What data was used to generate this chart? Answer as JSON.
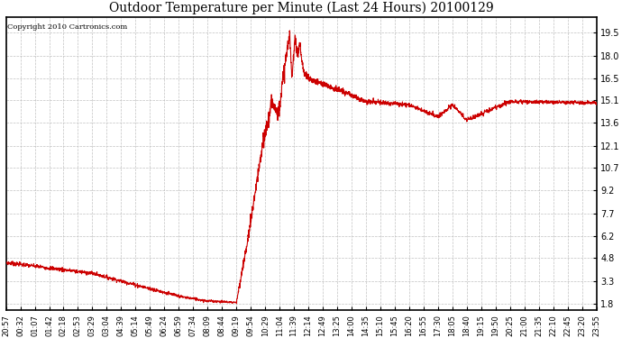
{
  "title": "Outdoor Temperature per Minute (Last 24 Hours) 20100129",
  "copyright": "Copyright 2010 Cartronics.com",
  "line_color": "#cc0000",
  "bg_color": "#ffffff",
  "plot_bg_color": "#ffffff",
  "grid_color": "#bbbbbb",
  "yticks": [
    1.8,
    3.3,
    4.8,
    6.2,
    7.7,
    9.2,
    10.7,
    12.1,
    13.6,
    15.1,
    16.5,
    18.0,
    19.5
  ],
  "ylim": [
    1.4,
    20.5
  ],
  "xtick_labels": [
    "20:57",
    "00:32",
    "01:07",
    "01:42",
    "02:18",
    "02:53",
    "03:29",
    "03:04",
    "04:39",
    "05:14",
    "05:49",
    "06:24",
    "06:59",
    "07:34",
    "08:09",
    "08:44",
    "09:19",
    "09:54",
    "10:29",
    "11:04",
    "11:39",
    "12:14",
    "12:49",
    "13:25",
    "14:00",
    "14:35",
    "15:10",
    "15:45",
    "16:20",
    "16:55",
    "17:30",
    "18:05",
    "18:40",
    "19:15",
    "19:50",
    "20:25",
    "21:00",
    "21:35",
    "22:10",
    "22:45",
    "23:20",
    "23:55"
  ],
  "n_ticks": 42
}
